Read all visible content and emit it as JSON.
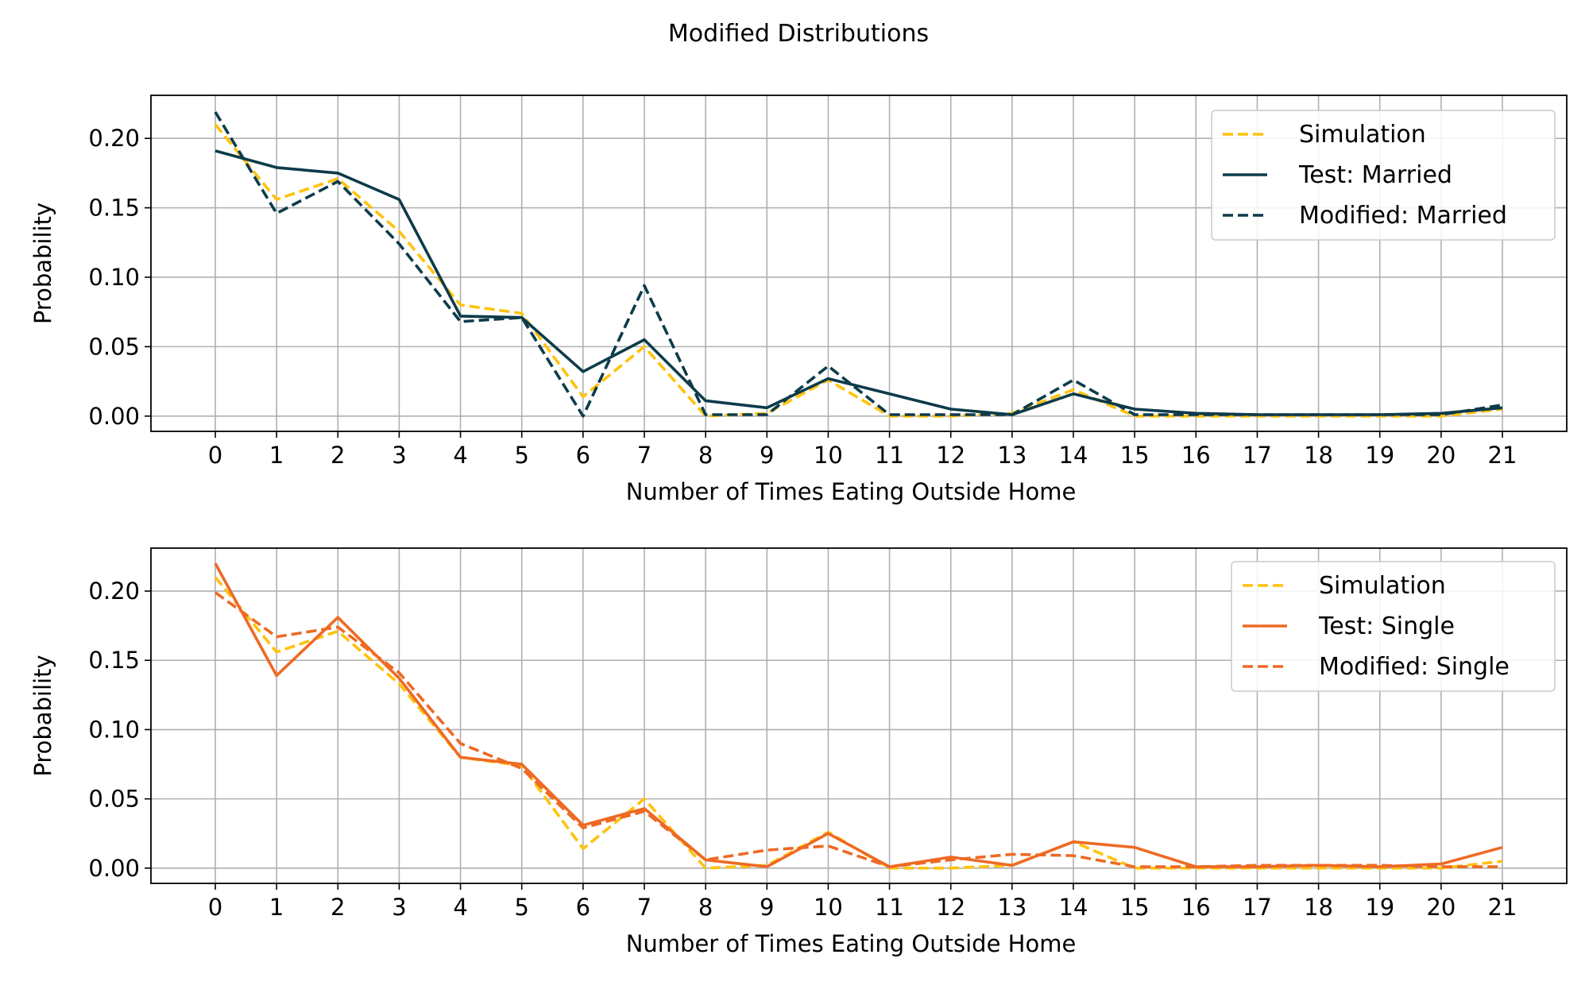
{
  "figure": {
    "title": "Modified Distributions"
  },
  "colors": {
    "simulation": "#FFC20E",
    "married": "#0D3B4A",
    "single": "#EE6A24",
    "grid": "#b0b0b0"
  },
  "chart_data": [
    {
      "type": "line",
      "xlabel": "Number of Times Eating Outside Home",
      "ylabel": "Probability",
      "xlim": [
        -1.05,
        22.05
      ],
      "ylim": [
        -0.011,
        0.231
      ],
      "grid": true,
      "legend_position": "top-right",
      "x": [
        0,
        1,
        2,
        3,
        4,
        5,
        6,
        7,
        8,
        9,
        10,
        11,
        12,
        13,
        14,
        15,
        16,
        17,
        18,
        19,
        20,
        21
      ],
      "yticks": [
        "0.00",
        "0.05",
        "0.10",
        "0.15",
        "0.20"
      ],
      "xticks": [
        "0",
        "1",
        "2",
        "3",
        "4",
        "5",
        "6",
        "7",
        "8",
        "9",
        "10",
        "11",
        "12",
        "13",
        "14",
        "15",
        "16",
        "17",
        "18",
        "19",
        "20",
        "21"
      ],
      "series": [
        {
          "name": "Simulation",
          "style": "dashed",
          "color": "#FFC20E",
          "values": [
            0.21,
            0.156,
            0.171,
            0.133,
            0.08,
            0.074,
            0.014,
            0.05,
            0.0,
            0.002,
            0.026,
            0.0,
            0.0,
            0.002,
            0.019,
            0.0,
            0.0,
            0.0,
            0.0,
            0.0,
            0.0,
            0.005
          ]
        },
        {
          "name": "Test: Married",
          "style": "solid",
          "color": "#0D3B4A",
          "values": [
            0.191,
            0.179,
            0.175,
            0.156,
            0.072,
            0.071,
            0.032,
            0.055,
            0.011,
            0.006,
            0.027,
            0.016,
            0.005,
            0.001,
            0.016,
            0.005,
            0.002,
            0.001,
            0.001,
            0.001,
            0.002,
            0.006
          ]
        },
        {
          "name": "Modified: Married",
          "style": "dashed",
          "color": "#0D3B4A",
          "values": [
            0.219,
            0.146,
            0.169,
            0.124,
            0.068,
            0.071,
            0.0,
            0.094,
            0.001,
            0.001,
            0.036,
            0.001,
            0.001,
            0.001,
            0.026,
            0.001,
            0.001,
            0.001,
            0.001,
            0.001,
            0.001,
            0.008
          ]
        }
      ]
    },
    {
      "type": "line",
      "xlabel": "Number of Times Eating Outside Home",
      "ylabel": "Probability",
      "xlim": [
        -1.05,
        22.05
      ],
      "ylim": [
        -0.011,
        0.231
      ],
      "grid": true,
      "legend_position": "top-right",
      "x": [
        0,
        1,
        2,
        3,
        4,
        5,
        6,
        7,
        8,
        9,
        10,
        11,
        12,
        13,
        14,
        15,
        16,
        17,
        18,
        19,
        20,
        21
      ],
      "yticks": [
        "0.00",
        "0.05",
        "0.10",
        "0.15",
        "0.20"
      ],
      "xticks": [
        "0",
        "1",
        "2",
        "3",
        "4",
        "5",
        "6",
        "7",
        "8",
        "9",
        "10",
        "11",
        "12",
        "13",
        "14",
        "15",
        "16",
        "17",
        "18",
        "19",
        "20",
        "21"
      ],
      "series": [
        {
          "name": "Simulation",
          "style": "dashed",
          "color": "#FFC20E",
          "values": [
            0.21,
            0.156,
            0.171,
            0.133,
            0.08,
            0.074,
            0.014,
            0.05,
            0.0,
            0.002,
            0.026,
            0.0,
            0.0,
            0.002,
            0.019,
            0.0,
            0.0,
            0.0,
            0.0,
            0.0,
            0.0,
            0.005
          ]
        },
        {
          "name": "Test: Single",
          "style": "solid",
          "color": "#EE6A24",
          "values": [
            0.22,
            0.139,
            0.181,
            0.137,
            0.08,
            0.075,
            0.031,
            0.043,
            0.006,
            0.001,
            0.025,
            0.001,
            0.008,
            0.002,
            0.019,
            0.015,
            0.001,
            0.001,
            0.002,
            0.001,
            0.003,
            0.015
          ]
        },
        {
          "name": "Modified: Single",
          "style": "dashed",
          "color": "#EE6A24",
          "values": [
            0.199,
            0.167,
            0.174,
            0.141,
            0.09,
            0.072,
            0.029,
            0.041,
            0.006,
            0.013,
            0.016,
            0.001,
            0.006,
            0.01,
            0.009,
            0.001,
            0.001,
            0.002,
            0.002,
            0.002,
            0.001,
            0.001
          ]
        }
      ]
    }
  ]
}
